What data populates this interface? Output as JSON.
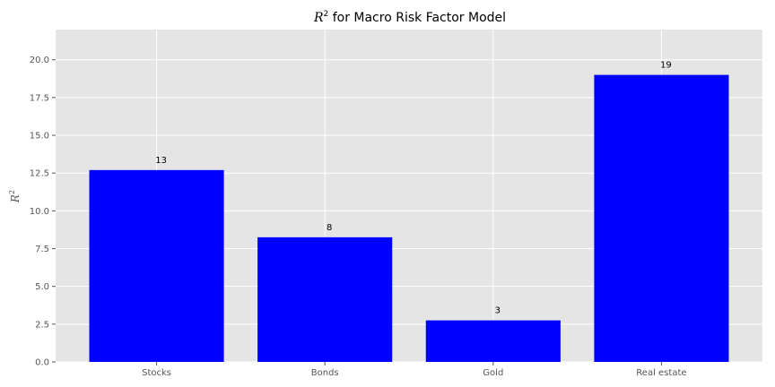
{
  "chart_data": {
    "type": "bar",
    "title": "R² for Macro Risk Factor Model",
    "title_prefix": "R",
    "title_sup": "2",
    "title_rest": " for Macro Risk Factor Model",
    "xlabel": "",
    "ylabel": "R²",
    "ylabel_base": "R",
    "ylabel_sup": "2",
    "categories": [
      "Stocks",
      "Bonds",
      "Gold",
      "Real estate"
    ],
    "values": [
      12.7,
      8.25,
      2.75,
      19.0
    ],
    "data_labels": [
      "13",
      "8",
      "3",
      "19"
    ],
    "ylim": [
      0,
      22
    ],
    "yticks": [
      0.0,
      2.5,
      5.0,
      7.5,
      10.0,
      12.5,
      15.0,
      17.5,
      20.0
    ],
    "ytick_labels": [
      "0.0",
      "2.5",
      "5.0",
      "7.5",
      "10.0",
      "12.5",
      "15.0",
      "17.5",
      "20.0"
    ],
    "grid": true,
    "bar_color": "#0000ff",
    "background_color": "#e5e5e5",
    "grid_color": "#ffffff"
  }
}
